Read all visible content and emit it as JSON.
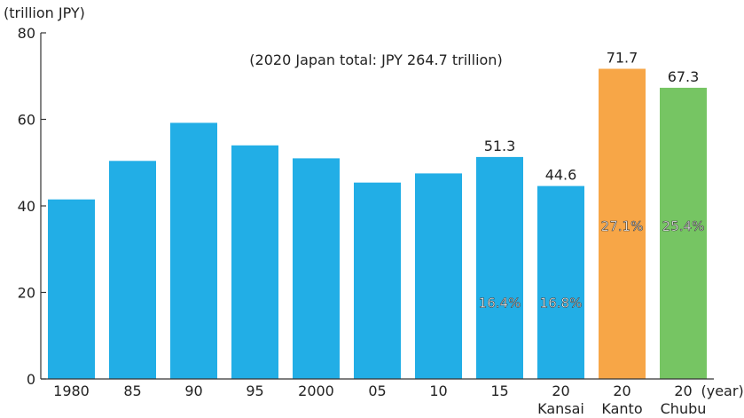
{
  "chart_data": {
    "type": "bar",
    "ylabel": "(trillion JPY)",
    "xlabel_suffix": "(year)",
    "ylim": [
      0,
      80
    ],
    "yticks": [
      0,
      20,
      40,
      60,
      80
    ],
    "note": "(2020 Japan total: JPY 264.7 trillion)",
    "colors": {
      "blue": "#22aee6",
      "orange": "#f7a647",
      "green": "#76c563"
    },
    "bars": [
      {
        "label": "1980",
        "sublabel": "",
        "value": 41.5,
        "color": "blue",
        "value_label": "",
        "pct_label": ""
      },
      {
        "label": "85",
        "sublabel": "",
        "value": 50.4,
        "color": "blue",
        "value_label": "",
        "pct_label": ""
      },
      {
        "label": "90",
        "sublabel": "",
        "value": 59.2,
        "color": "blue",
        "value_label": "",
        "pct_label": ""
      },
      {
        "label": "95",
        "sublabel": "",
        "value": 54.0,
        "color": "blue",
        "value_label": "",
        "pct_label": ""
      },
      {
        "label": "2000",
        "sublabel": "",
        "value": 51.0,
        "color": "blue",
        "value_label": "",
        "pct_label": ""
      },
      {
        "label": "05",
        "sublabel": "",
        "value": 45.4,
        "color": "blue",
        "value_label": "",
        "pct_label": ""
      },
      {
        "label": "10",
        "sublabel": "",
        "value": 47.5,
        "color": "blue",
        "value_label": "",
        "pct_label": ""
      },
      {
        "label": "15",
        "sublabel": "",
        "value": 51.3,
        "color": "blue",
        "value_label": "51.3",
        "pct_label": "16.4%"
      },
      {
        "label": "20",
        "sublabel": "Kansai",
        "value": 44.6,
        "color": "blue",
        "value_label": "44.6",
        "pct_label": "16.8%"
      },
      {
        "label": "20",
        "sublabel": "Kanto",
        "value": 71.7,
        "color": "orange",
        "value_label": "71.7",
        "pct_label": "27.1%"
      },
      {
        "label": "20",
        "sublabel": "Chubu",
        "value": 67.3,
        "color": "green",
        "value_label": "67.3",
        "pct_label": "25.4%"
      }
    ]
  }
}
